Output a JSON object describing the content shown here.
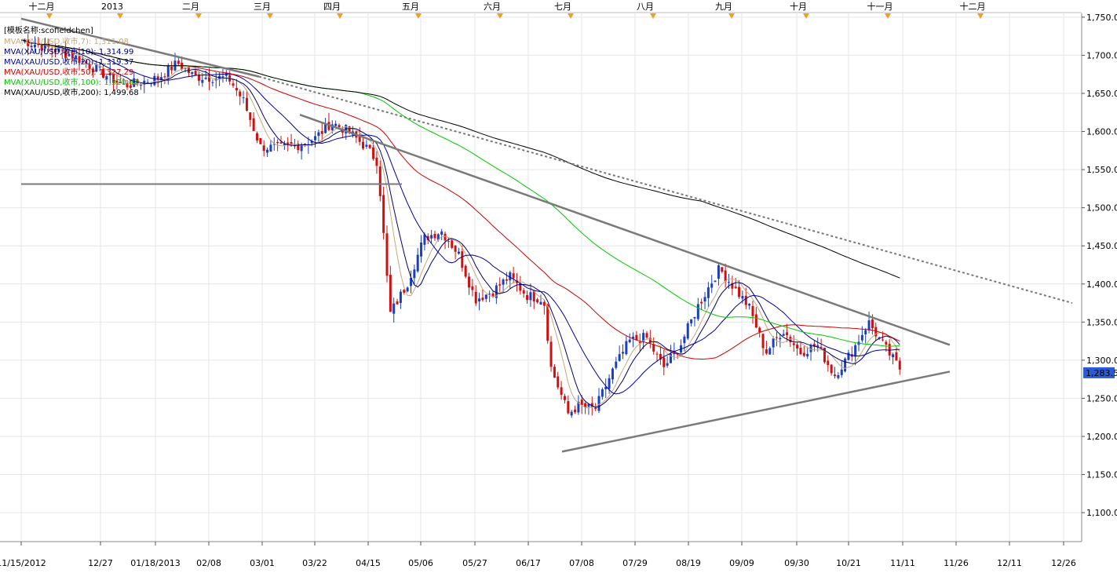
{
  "chart_data": {
    "type": "candlestick",
    "title": "[模板名称:scofieldchen]",
    "legend": [
      {
        "label": "MVA(XAU/USD,收市,7)",
        "value": "1,311.08",
        "color": "#c8a878"
      },
      {
        "label": "MVA(XAU/USD,收市,10)",
        "value": "1,314.99",
        "color": "#00006e"
      },
      {
        "label": "MVA(XAU/USD,收市,20)",
        "value": "1,319.37",
        "color": "#0000a0"
      },
      {
        "label": "MVA(XAU/USD,收市,50)",
        "value": "1,327.29",
        "color": "#d00000"
      },
      {
        "label": "MVA(XAU/USD,收市,100)",
        "value": "1,320.82",
        "color": "#00c800"
      },
      {
        "label": "MVA(XAU/USD,收市,200)",
        "value": "1,499.68",
        "color": "#000000"
      }
    ],
    "y_axis": {
      "range": [
        1062,
        1755
      ],
      "ticks": [
        "1,100.00",
        "1,150.00",
        "1,200.00",
        "1,250.00",
        "1,300.00",
        "1,350.00",
        "1,400.00",
        "1,450.00",
        "1,500.00",
        "1,550.00",
        "1,600.00",
        "1,650.00",
        "1,700.00",
        "1,750.00"
      ],
      "last_price": "1,283.5"
    },
    "x_axis": {
      "ticks": [
        "11/15/2012",
        "12/27",
        "01/18/2013",
        "02/08",
        "03/01",
        "03/22",
        "04/15",
        "05/06",
        "05/27",
        "06/17",
        "07/08",
        "07/29",
        "08/19",
        "09/09",
        "09/30",
        "10/21",
        "11/11",
        "11/26",
        "12/11",
        "12/26"
      ]
    },
    "top_axis": {
      "labels": [
        "十二月",
        "2013",
        "二月",
        "三月",
        "四月",
        "五月",
        "六月",
        "七月",
        "八月",
        "九月",
        "十月",
        "十一月",
        "十二月"
      ]
    },
    "close_path": [
      [
        "11/15/2012",
        1720
      ],
      [
        "12/06",
        1700
      ],
      [
        "12/27",
        1660
      ],
      [
        "01/10",
        1670
      ],
      [
        "01/18/2013",
        1690
      ],
      [
        "01/25",
        1672
      ],
      [
        "02/08",
        1670
      ],
      [
        "02/14",
        1640
      ],
      [
        "02/21",
        1580
      ],
      [
        "03/01",
        1578
      ],
      [
        "03/08",
        1582
      ],
      [
        "03/15",
        1590
      ],
      [
        "03/22",
        1612
      ],
      [
        "03/29",
        1600
      ],
      [
        "04/05",
        1580
      ],
      [
        "04/10",
        1560
      ],
      [
        "04/12",
        1480
      ],
      [
        "04/15",
        1360
      ],
      [
        "04/22",
        1400
      ],
      [
        "04/29",
        1460
      ],
      [
        "05/06",
        1470
      ],
      [
        "05/13",
        1440
      ],
      [
        "05/20",
        1380
      ],
      [
        "05/27",
        1390
      ],
      [
        "06/03",
        1410
      ],
      [
        "06/10",
        1385
      ],
      [
        "06/17",
        1380
      ],
      [
        "06/20",
        1290
      ],
      [
        "06/27",
        1230
      ],
      [
        "07/01",
        1240
      ],
      [
        "07/08",
        1235
      ],
      [
        "07/15",
        1285
      ],
      [
        "07/22",
        1325
      ],
      [
        "07/29",
        1330
      ],
      [
        "08/05",
        1290
      ],
      [
        "08/12",
        1320
      ],
      [
        "08/19",
        1370
      ],
      [
        "08/26",
        1410
      ],
      [
        "08/28",
        1420
      ],
      [
        "09/03",
        1395
      ],
      [
        "09/09",
        1370
      ],
      [
        "09/16",
        1310
      ],
      [
        "09/23",
        1340
      ],
      [
        "09/30",
        1310
      ],
      [
        "10/07",
        1320
      ],
      [
        "10/14",
        1280
      ],
      [
        "10/21",
        1310
      ],
      [
        "10/28",
        1350
      ],
      [
        "11/04",
        1315
      ],
      [
        "11/11",
        1283.5
      ]
    ],
    "trendlines": [
      {
        "name": "upper",
        "from": [
          "03/25",
          1622
        ],
        "to": [
          "11/28",
          1320
        ],
        "style": "solid"
      },
      {
        "name": "upper-left",
        "from": [
          "11/15/2012",
          1748
        ],
        "to": [
          "02/28",
          1672
        ],
        "style": "solid"
      },
      {
        "name": "lower",
        "from": [
          "07/01",
          1180
        ],
        "to": [
          "11/28",
          1285
        ],
        "style": "solid"
      },
      {
        "name": "long-dotted",
        "from": [
          "02/28",
          1672
        ],
        "to": [
          "12/31",
          1375
        ],
        "style": "dotted"
      },
      {
        "name": "horizontal",
        "from": [
          "11/15/2012",
          1531
        ],
        "to": [
          "05/05",
          1531
        ],
        "style": "solid"
      }
    ]
  }
}
